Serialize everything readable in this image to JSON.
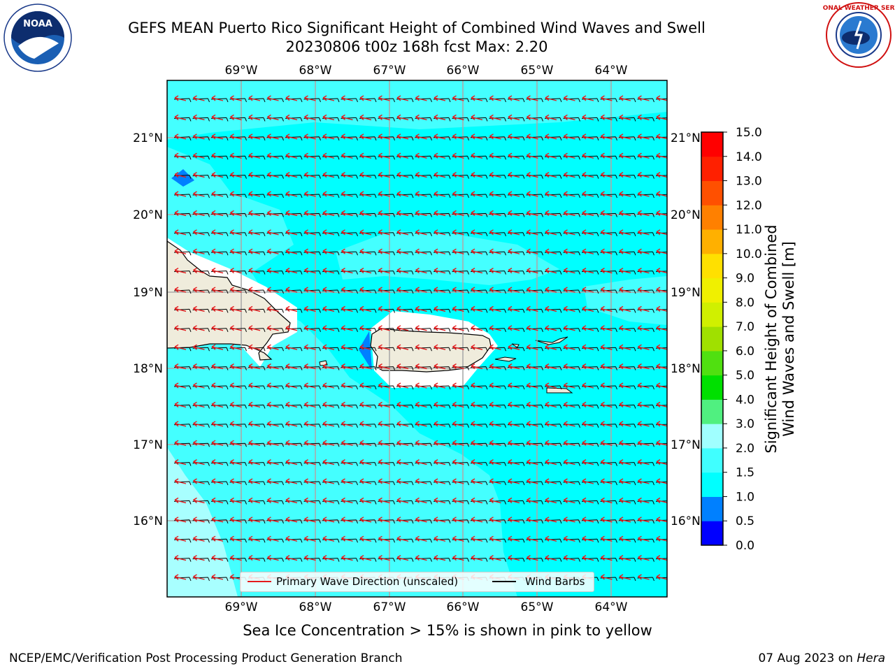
{
  "title": {
    "line1": "GEFS MEAN Puerto Rico Significant Height of Combined Wind Waves and Swell",
    "line2": "20230806 t00z 168h fcst   Max: 2.20"
  },
  "logos": {
    "left": "noaa-logo",
    "left_text": "NOAA",
    "right": "nws-logo",
    "right_text": "NATIONAL WEATHER SERVICE"
  },
  "map": {
    "lon_ticks": [
      "69°W",
      "68°W",
      "67°W",
      "66°W",
      "65°W",
      "64°W"
    ],
    "lat_ticks": [
      "21°N",
      "20°N",
      "19°N",
      "18°N",
      "17°N",
      "16°N"
    ],
    "lat_ticks_right": [
      "21°N",
      "20°N",
      "19°N",
      "18°N",
      "17°N",
      "16°N"
    ],
    "colors": {
      "ocean_base": "#00ffff",
      "ocean_light": "#44ffff",
      "ocean_lighter": "#a8ffff",
      "land": "#efecdc",
      "wave_arrow": "#e41a1c",
      "barb": "#000000",
      "grid": "#aaaaaa"
    }
  },
  "legend": {
    "wave_label": "Primary Wave Direction (unscaled)",
    "barb_label": "Wind Barbs"
  },
  "colorbar": {
    "title_line1": "Significant Height of Combined",
    "title_line2": "Wind Waves and Swell [m]",
    "ticks": [
      "0.0",
      "0.5",
      "1.0",
      "1.5",
      "2.0",
      "3.0",
      "4.0",
      "5.0",
      "6.0",
      "7.0",
      "8.0",
      "9.0",
      "10.0",
      "11.0",
      "12.0",
      "13.0",
      "14.0",
      "15.0"
    ],
    "colors": [
      "#0000ff",
      "#0080ff",
      "#00ffff",
      "#40ffff",
      "#a0ffff",
      "#50f080",
      "#00e000",
      "#50e010",
      "#a0e000",
      "#d0f000",
      "#f0f000",
      "#ffe000",
      "#ffb000",
      "#ff8000",
      "#ff5000",
      "#ff2000",
      "#ff0000"
    ]
  },
  "subtitle": "Sea Ice Concentration > 15% is shown in pink to yellow",
  "footer": {
    "left": "NCEP/EMC/Verification Post Processing Product Generation Branch",
    "right_date": "07 Aug 2023 on ",
    "right_host": "Hera"
  }
}
